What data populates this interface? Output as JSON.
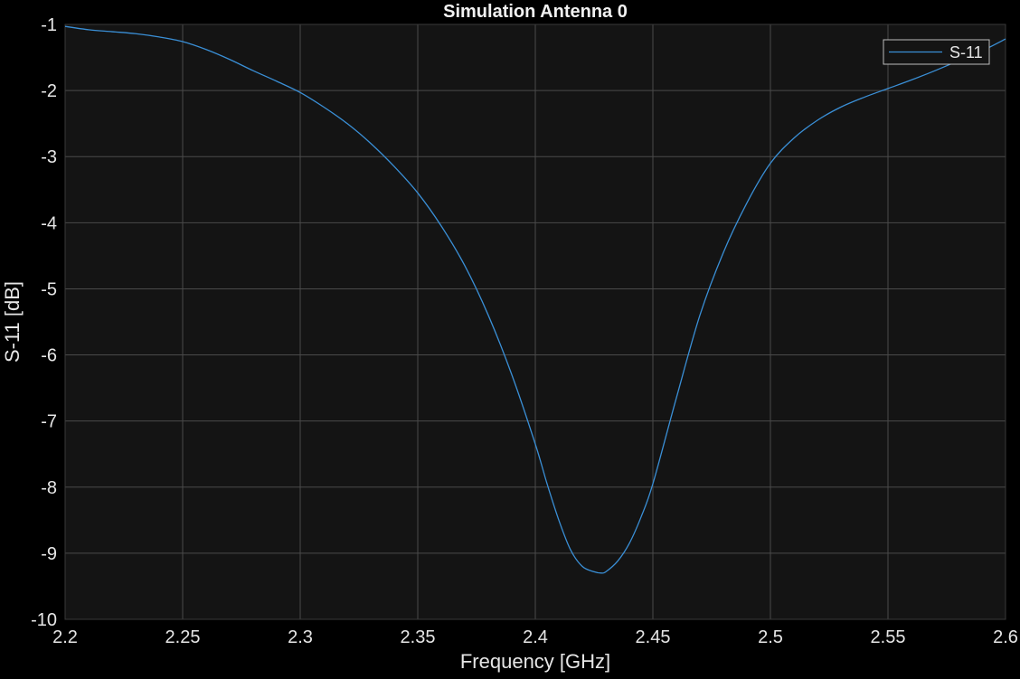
{
  "chart_data": {
    "type": "line",
    "title": "Simulation Antenna 0",
    "xlabel": "Frequency [GHz]",
    "ylabel": "S-11 [dB]",
    "xlim": [
      2.2,
      2.6
    ],
    "ylim": [
      -10,
      -1
    ],
    "x_ticks": [
      2.2,
      2.25,
      2.3,
      2.35,
      2.4,
      2.45,
      2.5,
      2.55,
      2.6
    ],
    "x_tick_labels": [
      "2.2",
      "2.25",
      "2.3",
      "2.35",
      "2.4",
      "2.45",
      "2.5",
      "2.55",
      "2.6"
    ],
    "y_ticks": [
      -1,
      -2,
      -3,
      -4,
      -5,
      -6,
      -7,
      -8,
      -9,
      -10
    ],
    "y_tick_labels": [
      "-1",
      "-2",
      "-3",
      "-4",
      "-5",
      "-6",
      "-7",
      "-8",
      "-9",
      "-10"
    ],
    "grid": true,
    "legend_position": "top-right",
    "colors": {
      "background": "#000000",
      "axes_background": "#141414",
      "series": "#3a8fd6",
      "grid": "#4a4a4a",
      "text": "#e6e6e6"
    },
    "series": [
      {
        "name": "S-11",
        "x": [
          2.2,
          2.21,
          2.22,
          2.23,
          2.24,
          2.25,
          2.26,
          2.27,
          2.28,
          2.29,
          2.3,
          2.31,
          2.32,
          2.33,
          2.34,
          2.35,
          2.36,
          2.37,
          2.38,
          2.39,
          2.4,
          2.405,
          2.41,
          2.415,
          2.42,
          2.425,
          2.428,
          2.43,
          2.435,
          2.44,
          2.445,
          2.45,
          2.46,
          2.47,
          2.48,
          2.49,
          2.5,
          2.51,
          2.52,
          2.53,
          2.54,
          2.55,
          2.56,
          2.57,
          2.58,
          2.59,
          2.6
        ],
        "y": [
          -1.03,
          -1.08,
          -1.11,
          -1.14,
          -1.19,
          -1.26,
          -1.38,
          -1.53,
          -1.7,
          -1.86,
          -2.03,
          -2.25,
          -2.5,
          -2.8,
          -3.15,
          -3.55,
          -4.05,
          -4.65,
          -5.4,
          -6.3,
          -7.35,
          -7.95,
          -8.5,
          -8.95,
          -9.2,
          -9.28,
          -9.3,
          -9.28,
          -9.12,
          -8.85,
          -8.45,
          -7.95,
          -6.65,
          -5.4,
          -4.45,
          -3.7,
          -3.1,
          -2.72,
          -2.45,
          -2.25,
          -2.1,
          -1.97,
          -1.84,
          -1.7,
          -1.55,
          -1.4,
          -1.22
        ]
      }
    ]
  }
}
